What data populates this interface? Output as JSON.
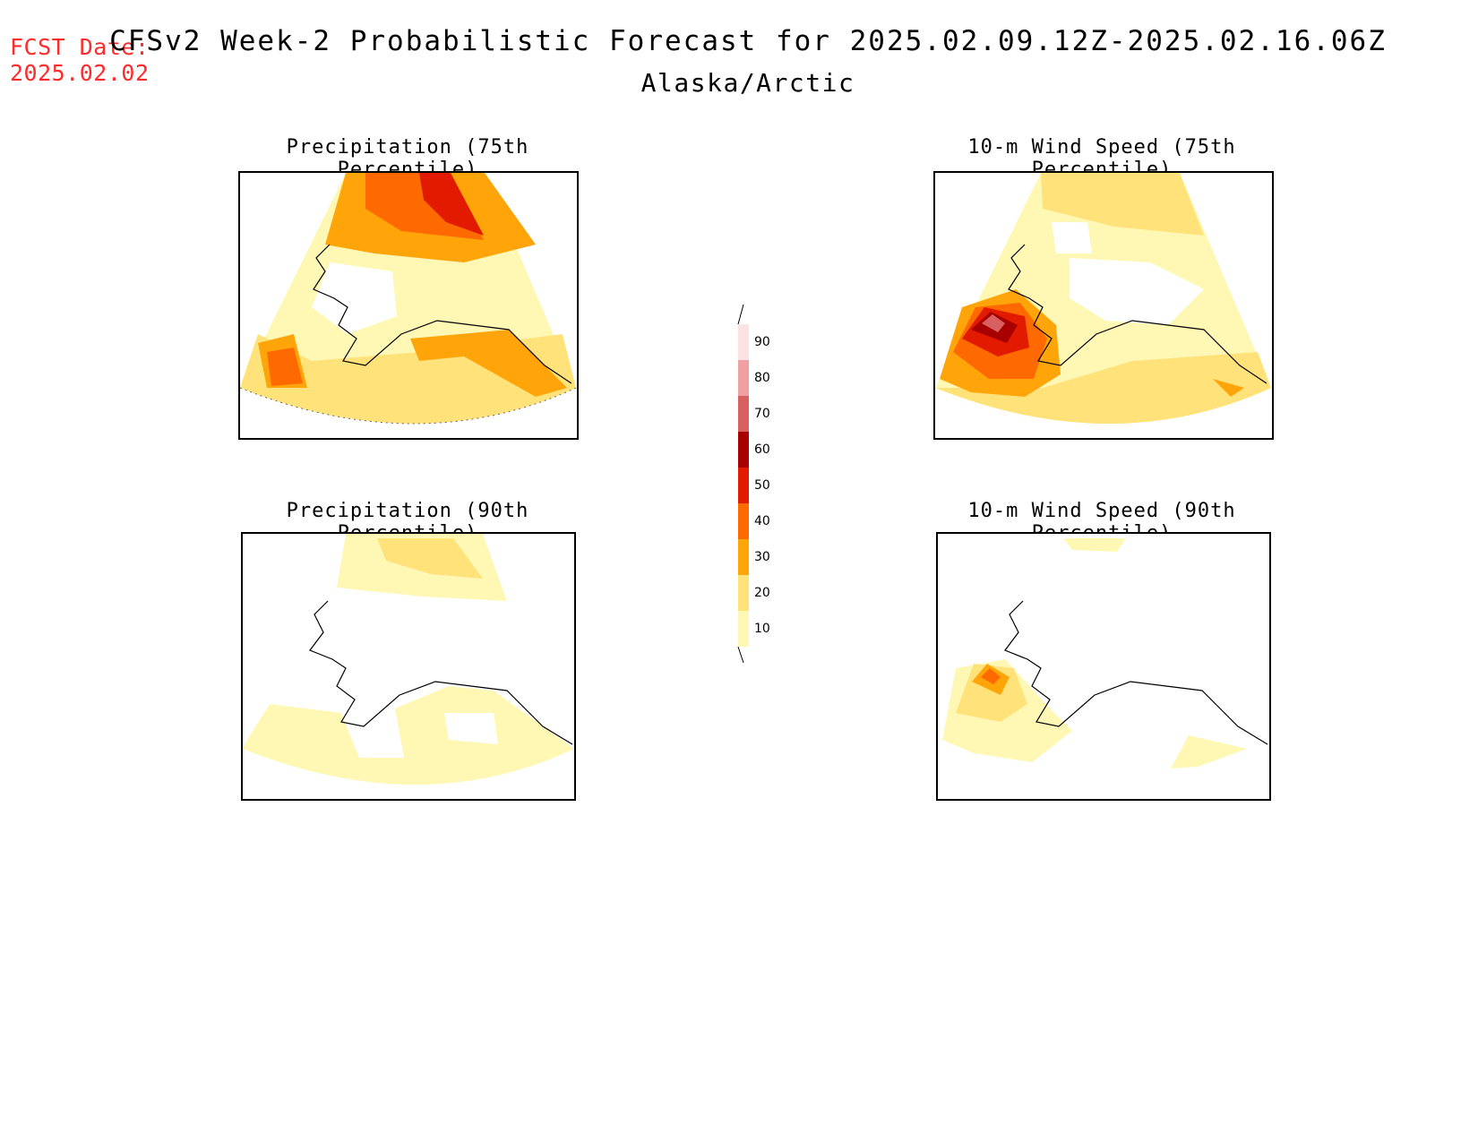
{
  "header": {
    "fcst_line1": "FCST Date:",
    "fcst_line2": "2025.02.02",
    "title": "CFSv2 Week-2 Probabilistic Forecast for 2025.02.09.12Z-2025.02.16.06Z",
    "subtitle": "Alaska/Arctic"
  },
  "panels": {
    "precip75": {
      "title": "Precipitation (75th Percentile)"
    },
    "precip90": {
      "title": "Precipitation (90th Percentile)"
    },
    "wind75": {
      "title": "10-m Wind Speed (75th Percentile)"
    },
    "wind90": {
      "title": "10-m Wind Speed (90th Percentile)"
    }
  },
  "colorbar": {
    "levels": [
      "90",
      "80",
      "70",
      "60",
      "50",
      "40",
      "30",
      "20",
      "10"
    ],
    "colors": {
      "p10": "#fff8b4",
      "p20": "#ffe27a",
      "p30": "#ffa50a",
      "p40": "#ff6a00",
      "p50": "#e11a00",
      "p60": "#a80000",
      "p70": "#d86060",
      "p80": "#f0a0a0",
      "p90": "#fce3e3"
    }
  },
  "coast_color": "#000000"
}
